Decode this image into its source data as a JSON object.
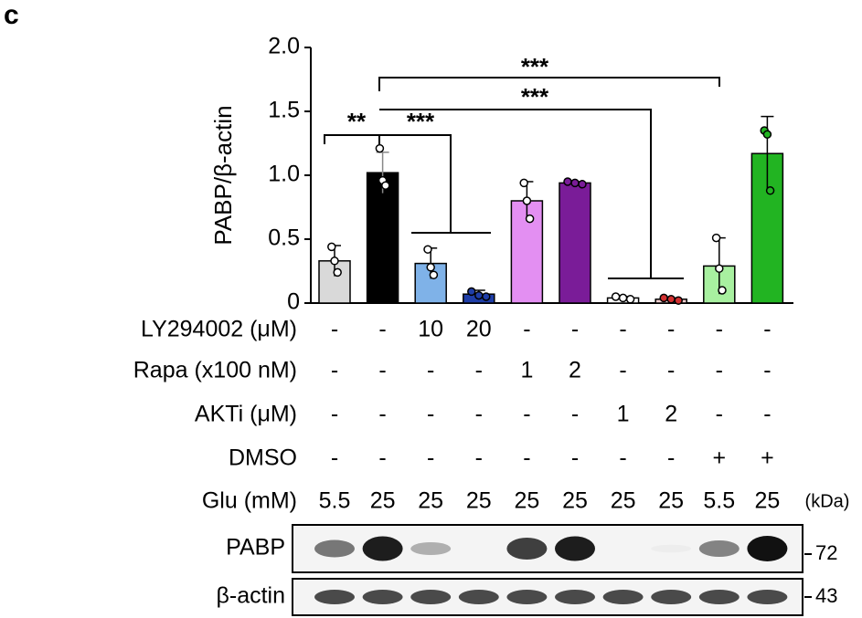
{
  "panel_label": "c",
  "chart_data": {
    "type": "bar",
    "ylabel": "PABP/β-actin",
    "ylim": [
      0,
      2
    ],
    "yticks": [
      0,
      0.5,
      {
        "value": 1,
        "label": "1.0"
      },
      1.5,
      {
        "value": 2,
        "label": "2.0"
      }
    ],
    "values": [
      0.33,
      1.02,
      0.31,
      0.07,
      0.8,
      0.94,
      0.04,
      0.03,
      0.29,
      1.17
    ],
    "errors": [
      0.12,
      0.16,
      0.12,
      0.03,
      0.15,
      0.01,
      0.01,
      0.01,
      0.22,
      0.29
    ],
    "colors": [
      "#d9d9d9",
      "#000000",
      "#7fb2e8",
      "#1f3ea8",
      "#e38ff2",
      "#7a1c98",
      "#ffffff",
      "#f2d0d0",
      "#a8f0a0",
      "#22b422"
    ],
    "dot_colors": [
      "#ffffff",
      "#ffffff",
      "#ffffff",
      "#1f3ea8",
      "#ffffff",
      "#7a1c98",
      "#ffffff",
      "#d23030",
      "#ffffff",
      "#22b422"
    ],
    "points": [
      [
        0.44,
        0.33,
        0.24
      ],
      [
        1.21,
        0.96,
        0.92
      ],
      [
        0.42,
        0.28,
        0.22
      ],
      [
        0.09,
        0.06,
        0.05
      ],
      [
        0.94,
        0.8,
        0.66
      ],
      [
        0.95,
        0.94,
        0.93
      ],
      [
        0.05,
        0.04,
        0.03
      ],
      [
        0.04,
        0.03,
        0.02
      ],
      [
        0.51,
        0.27,
        0.1
      ],
      [
        1.35,
        1.32,
        0.88
      ]
    ],
    "significance": [
      "**",
      "***",
      "***",
      "***"
    ]
  },
  "conditions": [
    {
      "label": "LY294002 (μM)",
      "cells": [
        "-",
        "-",
        "10",
        "20",
        "-",
        "-",
        "-",
        "-",
        "-",
        "-"
      ]
    },
    {
      "label": "Rapa (x100 nM)",
      "cells": [
        "-",
        "-",
        "-",
        "-",
        "1",
        "2",
        "-",
        "-",
        "-",
        "-"
      ]
    },
    {
      "label": "AKTi (μM)",
      "cells": [
        "-",
        "-",
        "-",
        "-",
        "-",
        "-",
        "1",
        "2",
        "-",
        "-"
      ]
    },
    {
      "label": "DMSO",
      "cells": [
        "-",
        "-",
        "-",
        "-",
        "-",
        "-",
        "-",
        "-",
        "+",
        "+"
      ]
    },
    {
      "label": "Glu (mM)",
      "cells": [
        "5.5",
        "25",
        "25",
        "25",
        "25",
        "25",
        "25",
        "25",
        "5.5",
        "25"
      ]
    }
  ],
  "kda_label": "(kDa)",
  "blots": [
    {
      "label": "PABP",
      "marker": "72"
    },
    {
      "label": "β-actin",
      "marker": "43"
    }
  ]
}
